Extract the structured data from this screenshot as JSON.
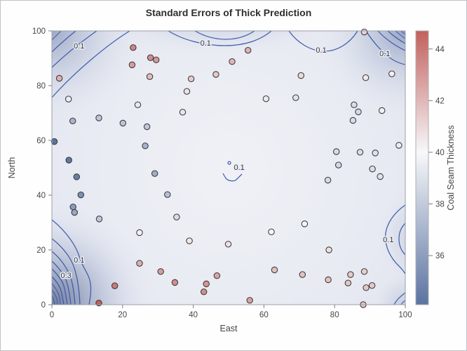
{
  "title": "Standard Errors of Thick Prediction",
  "chart_data": {
    "type": "scatter",
    "subtype": "kriging-standard-error-contour-with-observation-overlay",
    "title": "Standard Errors of Thick Prediction",
    "xlabel": "East",
    "ylabel": "North",
    "xlim": [
      0,
      100
    ],
    "ylim": [
      0,
      100
    ],
    "xticks": [
      0,
      20,
      40,
      60,
      80,
      100
    ],
    "yticks": [
      0,
      20,
      40,
      60,
      80,
      100
    ],
    "grid": false,
    "legend_position": "right-colorbar",
    "contour": {
      "line_color": "#3a57a8",
      "labeled_levels": [
        "0.1",
        "0.3"
      ],
      "labels": [
        {
          "text": "0.1",
          "east": 7.7,
          "north": 94.6
        },
        {
          "text": "0.1",
          "east": 43.5,
          "north": 95.6
        },
        {
          "text": "0.1",
          "east": 76.2,
          "north": 93.1
        },
        {
          "text": "0.1",
          "east": 94.2,
          "north": 91.8
        },
        {
          "text": "0.1",
          "east": 53.0,
          "north": 50.3
        },
        {
          "text": "0.1",
          "east": 95.2,
          "north": 23.8
        },
        {
          "text": "0.1",
          "east": 7.7,
          "north": 16.4
        },
        {
          "text": "0.3",
          "east": 4.0,
          "north": 10.8
        }
      ]
    },
    "colorbar": {
      "label": "Coal Seam Thickness",
      "ticks": [
        36,
        38,
        40,
        42,
        44
      ],
      "min": 34.1,
      "max": 44.7,
      "mid_value": 40,
      "colors": {
        "low": "#5b73a1",
        "mid": "#f7f8fa",
        "high": "#c2605d"
      }
    },
    "series": [
      {
        "name": "observations",
        "point_format": [
          "east",
          "north",
          "thickness"
        ],
        "points": [
          [
            0.7,
            59.6,
            34.1
          ],
          [
            2.1,
            82.7,
            42.2
          ],
          [
            4.7,
            75.1,
            39.5
          ],
          [
            4.8,
            52.8,
            34.3
          ],
          [
            5.9,
            67.1,
            37.0
          ],
          [
            6.0,
            35.7,
            35.9
          ],
          [
            6.4,
            33.7,
            36.4
          ],
          [
            7.0,
            46.7,
            34.6
          ],
          [
            8.2,
            40.1,
            35.4
          ],
          [
            13.3,
            0.6,
            44.7
          ],
          [
            13.3,
            68.2,
            37.8
          ],
          [
            13.4,
            31.3,
            37.8
          ],
          [
            17.8,
            6.9,
            43.9
          ],
          [
            20.1,
            66.3,
            37.7
          ],
          [
            22.7,
            87.6,
            42.8
          ],
          [
            23.0,
            93.9,
            43.6
          ],
          [
            24.3,
            73.0,
            39.3
          ],
          [
            24.8,
            15.1,
            42.3
          ],
          [
            24.8,
            26.3,
            39.7
          ],
          [
            26.4,
            58.0,
            36.9
          ],
          [
            26.9,
            65.0,
            37.8
          ],
          [
            27.7,
            83.3,
            41.8
          ],
          [
            27.9,
            90.2,
            43.3
          ],
          [
            29.1,
            47.9,
            36.7
          ],
          [
            29.5,
            89.4,
            43.0
          ],
          [
            30.8,
            12.1,
            42.8
          ],
          [
            32.7,
            40.2,
            37.5
          ],
          [
            34.8,
            8.1,
            43.3
          ],
          [
            35.3,
            32.0,
            38.8
          ],
          [
            37.0,
            70.3,
            39.2
          ],
          [
            38.2,
            77.9,
            40.7
          ],
          [
            38.9,
            23.3,
            40.5
          ],
          [
            39.4,
            82.5,
            41.4
          ],
          [
            43.0,
            4.7,
            43.3
          ],
          [
            43.7,
            7.6,
            43.1
          ],
          [
            46.4,
            84.1,
            41.5
          ],
          [
            46.7,
            10.6,
            42.6
          ],
          [
            49.9,
            22.1,
            40.7
          ],
          [
            51.0,
            88.8,
            42.0
          ],
          [
            55.5,
            92.9,
            42.2
          ],
          [
            56.0,
            1.6,
            42.7
          ],
          [
            60.6,
            75.2,
            39.4
          ],
          [
            62.1,
            26.6,
            40.1
          ],
          [
            63.0,
            12.7,
            41.8
          ],
          [
            69.0,
            75.6,
            39.1
          ],
          [
            70.5,
            83.7,
            40.9
          ],
          [
            70.9,
            11.0,
            41.7
          ],
          [
            71.5,
            29.5,
            39.8
          ],
          [
            78.1,
            45.5,
            38.7
          ],
          [
            78.2,
            9.1,
            41.7
          ],
          [
            78.4,
            20.0,
            40.8
          ],
          [
            80.5,
            55.9,
            38.7
          ],
          [
            81.1,
            51.0,
            38.6
          ],
          [
            83.8,
            7.9,
            41.6
          ],
          [
            84.5,
            11.0,
            41.5
          ],
          [
            85.2,
            67.3,
            38.8
          ],
          [
            85.5,
            73.0,
            38.8
          ],
          [
            86.7,
            70.4,
            38.6
          ],
          [
            87.2,
            55.7,
            38.8
          ],
          [
            88.1,
            0.0,
            41.6
          ],
          [
            88.4,
            12.1,
            41.3
          ],
          [
            88.4,
            99.6,
            41.2
          ],
          [
            88.8,
            82.9,
            40.5
          ],
          [
            88.9,
            6.2,
            41.5
          ],
          [
            90.6,
            7.0,
            41.5
          ],
          [
            90.7,
            49.6,
            38.9
          ],
          [
            91.5,
            55.4,
            39.0
          ],
          [
            92.9,
            46.8,
            39.1
          ],
          [
            93.4,
            70.9,
            39.7
          ],
          [
            96.2,
            84.3,
            40.3
          ],
          [
            98.2,
            58.2,
            39.5
          ]
        ]
      }
    ]
  }
}
